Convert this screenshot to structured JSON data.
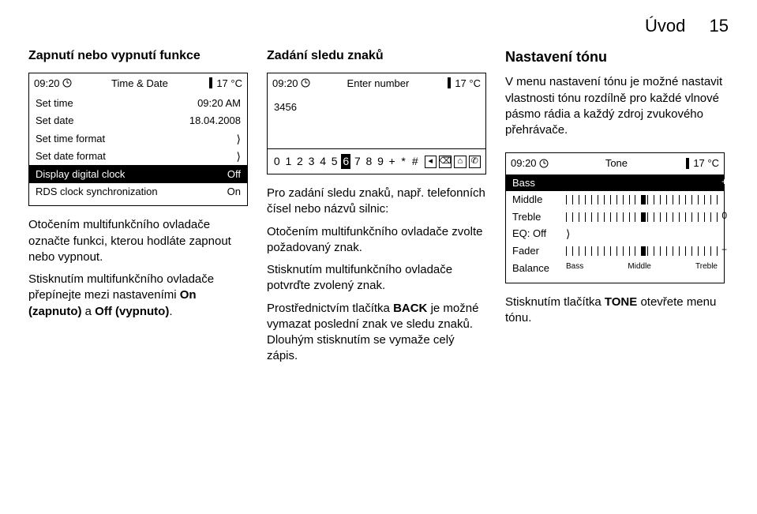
{
  "header": {
    "title": "Úvod",
    "page": "15"
  },
  "col1": {
    "heading": "Zapnutí nebo vypnutí funkce",
    "screen": {
      "time": "09:20",
      "title": "Time & Date",
      "temp": "17 °C",
      "rows": [
        {
          "label": "Set time",
          "value": "09:20 AM",
          "highlight": false,
          "arrow": false
        },
        {
          "label": "Set date",
          "value": "18.04.2008",
          "highlight": false,
          "arrow": false
        },
        {
          "label": "Set time format",
          "value": "",
          "highlight": false,
          "arrow": true
        },
        {
          "label": "Set date format",
          "value": "",
          "highlight": false,
          "arrow": true
        },
        {
          "label": "Display digital clock",
          "value": "Off",
          "highlight": true,
          "arrow": false
        },
        {
          "label": "RDS clock synchronization",
          "value": "On",
          "highlight": false,
          "arrow": false
        }
      ]
    },
    "p1": "Otočením multifunkčního ovladače označte funkci, kterou hodláte zapnout nebo vypnout.",
    "p2a": "Stisknutím multifunkčního ovladače přepínejte mezi nastaveními ",
    "p2b": "On (zapnuto)",
    "p2c": " a ",
    "p2d": "Off (vypnuto)",
    "p2e": "."
  },
  "col2": {
    "heading": "Zadání sledu znaků",
    "screen": {
      "time": "09:20",
      "title": "Enter number",
      "temp": "17 °C",
      "entered": "3456",
      "chars": [
        "0",
        "1",
        "2",
        "3",
        "4",
        "5",
        "6",
        "7",
        "8",
        "9",
        "+",
        "*",
        "#"
      ],
      "selected_index": 6,
      "boxes": [
        "◂",
        "⌫",
        "⌂",
        "✆"
      ]
    },
    "p1": "Pro zadání sledu znaků, např. telefonních čísel nebo názvů silnic:",
    "p2": "Otočením multifunkčního ovladače zvolte požadovaný znak.",
    "p3": "Stisknutím multifunkčního ovladače potvrďte zvolený znak.",
    "p4a": "Prostřednictvím tlačítka ",
    "p4b": "BACK",
    "p4c": " je možné vymazat poslední znak ve sledu znaků. Dlouhým stisknutím se vymaže celý zápis."
  },
  "col3": {
    "heading": "Nastavení tónu",
    "intro": "V menu nastavení tónu je možné nastavit vlastnosti tónu rozdílně pro každé vlnové pásmo rádia a každý zdroj zvukového přehrávače.",
    "screen": {
      "time": "09:20",
      "title": "Tone",
      "temp": "17 °C",
      "rows": [
        {
          "label": "Bass",
          "highlight": true,
          "pos": 0.5,
          "end": "+"
        },
        {
          "label": "Middle",
          "highlight": false,
          "pos": 0.5,
          "end": ""
        },
        {
          "label": "Treble",
          "highlight": false,
          "pos": 0.5,
          "end": "0"
        },
        {
          "label": "EQ:  Off",
          "highlight": false,
          "arrowOnly": true
        },
        {
          "label": "Fader",
          "highlight": false,
          "pos": 0.5,
          "end": "−"
        },
        {
          "label": "Balance",
          "highlight": false,
          "axis": true
        }
      ],
      "axis": [
        "Bass",
        "Middle",
        "Treble"
      ]
    },
    "p1a": "Stisknutím tlačítka ",
    "p1b": "TONE",
    "p1c": " otevřete menu tónu."
  }
}
